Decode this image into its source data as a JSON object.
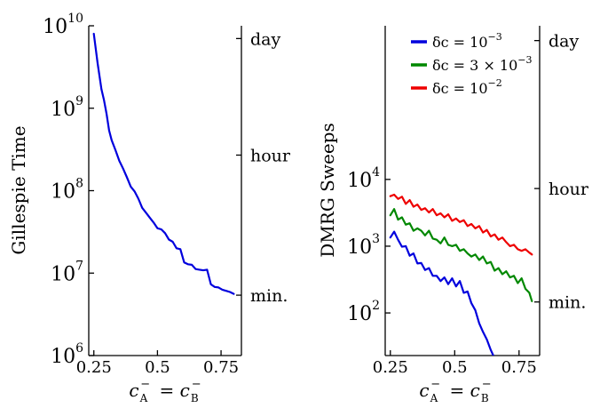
{
  "chart_data": [
    {
      "type": "line",
      "ylabel": "Gillespie Time",
      "xlabel": "c_A^- = c_B^-",
      "yscale": "log",
      "xlim": [
        0.23,
        0.83
      ],
      "ylim": [
        1000000,
        10000000000
      ],
      "x_ticks": [
        {
          "value": 0.25,
          "label": "0.25"
        },
        {
          "value": 0.5,
          "label": "0.5"
        },
        {
          "value": 0.75,
          "label": "0.75"
        }
      ],
      "y_ticks": [
        {
          "value": 1000000,
          "base": "10",
          "exp": "6"
        },
        {
          "value": 10000000,
          "base": "10",
          "exp": "7"
        },
        {
          "value": 100000000,
          "base": "10",
          "exp": "8"
        },
        {
          "value": 1000000000,
          "base": "10",
          "exp": "9"
        },
        {
          "value": 10000000000,
          "base": "10",
          "exp": "10"
        }
      ],
      "right_ticks": [
        {
          "value": 5400000,
          "label": "min."
        },
        {
          "value": 270000000,
          "label": "hour"
        },
        {
          "value": 7000000000,
          "label": "day"
        }
      ],
      "series": [
        {
          "color": "#0000dd",
          "x": [
            0.25,
            0.265,
            0.28,
            0.29,
            0.3,
            0.31,
            0.32,
            0.335,
            0.35,
            0.365,
            0.38,
            0.395,
            0.41,
            0.425,
            0.44,
            0.455,
            0.47,
            0.485,
            0.5,
            0.515,
            0.53,
            0.545,
            0.56,
            0.575,
            0.59,
            0.605,
            0.62,
            0.635,
            0.65,
            0.665,
            0.68,
            0.695,
            0.71,
            0.725,
            0.74,
            0.755,
            0.77,
            0.785,
            0.8
          ],
          "y": [
            8000000000,
            3500000000,
            1700000000,
            1250000000,
            850000000,
            540000000,
            410000000,
            310000000,
            230000000,
            185000000,
            145000000,
            112000000,
            98000000,
            80000000,
            62000000,
            54000000,
            47000000,
            41000000,
            35000000,
            34000000,
            30500000,
            25500000,
            24000000,
            20000000,
            19500000,
            13500000,
            12800000,
            12600000,
            11200000,
            11000000,
            10800000,
            11000000,
            7300000,
            6800000,
            6700000,
            6300000,
            6100000,
            5900000,
            5600000
          ]
        }
      ]
    },
    {
      "type": "line",
      "ylabel": "DMRG Sweeps",
      "xlabel": "c_A^- = c_B^-",
      "yscale": "log",
      "xlim": [
        0.23,
        0.83
      ],
      "ylim": [
        23,
        2000000
      ],
      "x_ticks": [
        {
          "value": 0.25,
          "label": "0.25"
        },
        {
          "value": 0.5,
          "label": "0.5"
        },
        {
          "value": 0.75,
          "label": "0.75"
        }
      ],
      "y_ticks": [
        {
          "value": 100,
          "base": "10",
          "exp": "2"
        },
        {
          "value": 1000,
          "base": "10",
          "exp": "3"
        },
        {
          "value": 10000,
          "base": "10",
          "exp": "4"
        }
      ],
      "right_ticks": [
        {
          "value": 146,
          "label": "min."
        },
        {
          "value": 7300,
          "label": "hour"
        },
        {
          "value": 1200000,
          "label": "day"
        }
      ],
      "legend_position": "top-right",
      "series": [
        {
          "name": "δc = 10^−3",
          "legend": {
            "text": "δc = 10",
            "exp": "−3"
          },
          "color": "#0000dd",
          "x": [
            0.25,
            0.265,
            0.28,
            0.295,
            0.31,
            0.325,
            0.34,
            0.355,
            0.37,
            0.385,
            0.4,
            0.415,
            0.43,
            0.445,
            0.46,
            0.475,
            0.49,
            0.505,
            0.52,
            0.535,
            0.55,
            0.565,
            0.58,
            0.595,
            0.61,
            0.625,
            0.64,
            0.65
          ],
          "y": [
            1350,
            1650,
            1250,
            980,
            1000,
            720,
            780,
            550,
            560,
            440,
            470,
            360,
            360,
            300,
            340,
            270,
            330,
            250,
            300,
            200,
            210,
            140,
            110,
            70,
            52,
            40,
            28,
            23
          ]
        },
        {
          "name": "δc = 3 × 10^−3",
          "legend": {
            "text": "δc = 3 × 10",
            "exp": "−3"
          },
          "color": "#008800",
          "x": [
            0.25,
            0.265,
            0.28,
            0.295,
            0.31,
            0.325,
            0.34,
            0.355,
            0.37,
            0.385,
            0.4,
            0.415,
            0.43,
            0.445,
            0.46,
            0.475,
            0.49,
            0.505,
            0.52,
            0.535,
            0.55,
            0.565,
            0.58,
            0.595,
            0.61,
            0.625,
            0.64,
            0.655,
            0.67,
            0.685,
            0.7,
            0.715,
            0.73,
            0.745,
            0.76,
            0.775,
            0.79,
            0.8
          ],
          "y": [
            2900,
            3600,
            2500,
            2700,
            2100,
            2200,
            1700,
            1850,
            1700,
            1450,
            1700,
            1300,
            1250,
            1100,
            1350,
            1050,
            1000,
            1050,
            850,
            900,
            780,
            700,
            750,
            620,
            700,
            550,
            580,
            430,
            470,
            380,
            420,
            340,
            360,
            280,
            330,
            230,
            200,
            150
          ]
        },
        {
          "name": "δc = 10^−2",
          "legend": {
            "text": "δc = 10",
            "exp": "−2"
          },
          "color": "#ee0000",
          "x": [
            0.25,
            0.265,
            0.28,
            0.295,
            0.31,
            0.325,
            0.34,
            0.355,
            0.37,
            0.385,
            0.4,
            0.415,
            0.43,
            0.445,
            0.46,
            0.475,
            0.49,
            0.505,
            0.52,
            0.535,
            0.55,
            0.565,
            0.58,
            0.595,
            0.61,
            0.625,
            0.64,
            0.655,
            0.67,
            0.685,
            0.7,
            0.715,
            0.73,
            0.745,
            0.76,
            0.775,
            0.79,
            0.8
          ],
          "y": [
            5600,
            5900,
            5100,
            5500,
            4300,
            4900,
            3900,
            4200,
            3500,
            3700,
            3200,
            3600,
            2900,
            3100,
            2700,
            3000,
            2400,
            2600,
            2300,
            2450,
            2000,
            2150,
            1850,
            2000,
            1600,
            1750,
            1400,
            1500,
            1250,
            1350,
            1150,
            1000,
            1050,
            900,
            850,
            900,
            800,
            750
          ]
        }
      ]
    }
  ]
}
